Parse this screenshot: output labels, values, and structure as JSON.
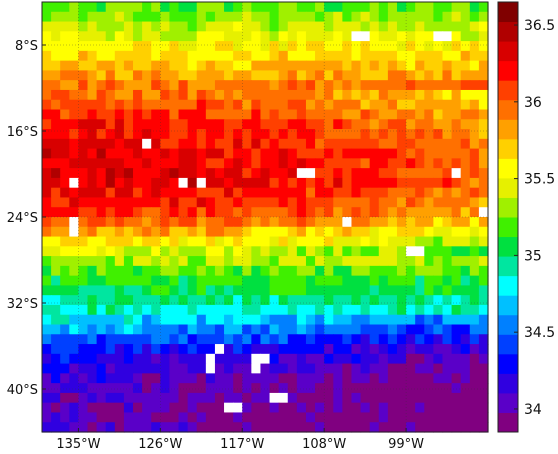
{
  "map": {
    "lon_range": [
      -139,
      -90
    ],
    "lat_range": [
      -44,
      -4
    ],
    "grid_cols": 49,
    "grid_rows": 44,
    "lon_ticks": [
      {
        "value": -135,
        "label": "135°W"
      },
      {
        "value": -126,
        "label": "126°W"
      },
      {
        "value": -117,
        "label": "117°W"
      },
      {
        "value": -108,
        "label": "108°W"
      },
      {
        "value": -99,
        "label": "99°W"
      }
    ],
    "lat_ticks": [
      {
        "value": -8,
        "label": "8°S"
      },
      {
        "value": -16,
        "label": "16°S"
      },
      {
        "value": -24,
        "label": "24°S"
      },
      {
        "value": -32,
        "label": "32°S"
      },
      {
        "value": -40,
        "label": "40°S"
      }
    ],
    "salinity_profile": {
      "lat": [
        -4,
        -8,
        -12,
        -15,
        -18,
        -21,
        -24,
        -26,
        -28,
        -30,
        -32,
        -34,
        -36,
        -38,
        -40,
        -44
      ],
      "value": [
        35.15,
        35.55,
        35.95,
        36.15,
        36.3,
        36.3,
        36.1,
        35.7,
        35.35,
        35.1,
        34.95,
        34.75,
        34.4,
        34.2,
        34.1,
        34.05
      ]
    },
    "missing_cells": [
      {
        "lon": -104,
        "lat": -7.5
      },
      {
        "lon": -105,
        "lat": -7.5
      },
      {
        "lon": -96,
        "lat": -7.5
      },
      {
        "lon": -95,
        "lat": -7.5
      },
      {
        "lon": -128,
        "lat": -17.2
      },
      {
        "lon": -136,
        "lat": -21.2
      },
      {
        "lon": -124,
        "lat": -21.2
      },
      {
        "lon": -123,
        "lat": -21.2
      },
      {
        "lon": -122,
        "lat": -21.2
      },
      {
        "lon": -111,
        "lat": -20.2
      },
      {
        "lon": -110,
        "lat": -20.2
      },
      {
        "lon": -94,
        "lat": -20.2
      },
      {
        "lon": -136,
        "lat": -24.2
      },
      {
        "lon": -136,
        "lat": -25.2
      },
      {
        "lon": -106,
        "lat": -24.2
      },
      {
        "lon": -90,
        "lat": -24.2
      },
      {
        "lon": -91,
        "lat": -23.2
      },
      {
        "lon": -99,
        "lat": -27.2
      },
      {
        "lon": -98,
        "lat": -27.2
      },
      {
        "lon": -120,
        "lat": -36.5
      },
      {
        "lon": -121,
        "lat": -37.5
      },
      {
        "lon": -121,
        "lat": -38.5
      },
      {
        "lon": -115,
        "lat": -37.5
      },
      {
        "lon": -116,
        "lat": -37.5
      },
      {
        "lon": -116,
        "lat": -38.5
      },
      {
        "lon": -113,
        "lat": -40.5
      },
      {
        "lon": -114,
        "lat": -40.5
      },
      {
        "lon": -119,
        "lat": -41.5
      },
      {
        "lon": -118,
        "lat": -41.5
      }
    ]
  },
  "colorbar": {
    "min": 33.85,
    "max": 36.65,
    "ticks": [
      {
        "value": 34,
        "label": "34"
      },
      {
        "value": 34.5,
        "label": "34.5"
      },
      {
        "value": 35,
        "label": "35"
      },
      {
        "value": 35.5,
        "label": "35.5"
      },
      {
        "value": 36,
        "label": "36"
      },
      {
        "value": 36.5,
        "label": "36.5"
      }
    ],
    "colors": [
      "#800080",
      "#5a00c8",
      "#3000e0",
      "#0000ff",
      "#0040ff",
      "#0080ff",
      "#00c0ff",
      "#00ffff",
      "#00e6a0",
      "#00e040",
      "#40f000",
      "#a0f000",
      "#e6f000",
      "#ffff00",
      "#ffd000",
      "#ffa000",
      "#ff7000",
      "#ff4000",
      "#ff0000",
      "#d80000",
      "#b00000",
      "#800000"
    ]
  }
}
